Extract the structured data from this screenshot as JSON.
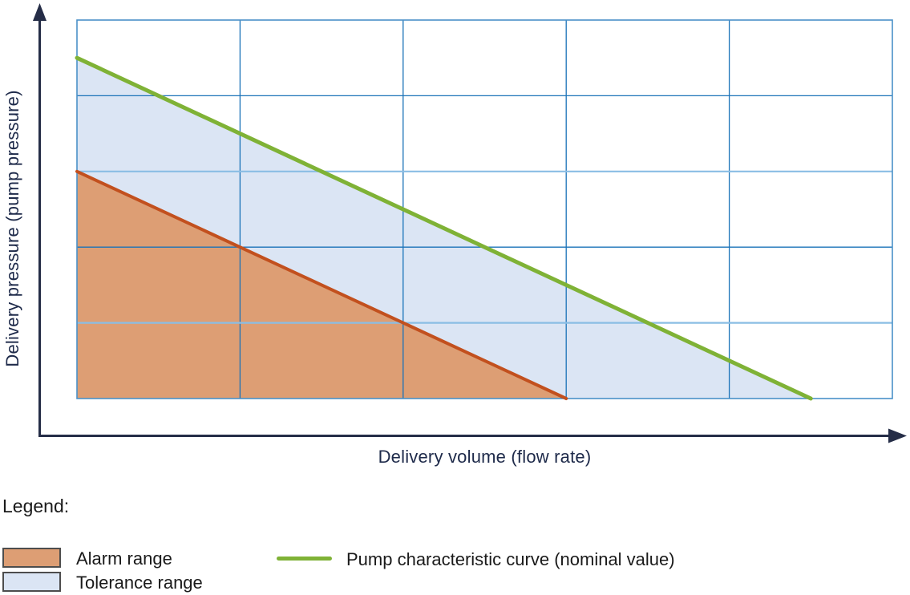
{
  "axes": {
    "x_label": "Delivery volume (flow rate)",
    "y_label": "Delivery pressure (pump pressure)"
  },
  "legend": {
    "title": "Legend:",
    "alarm_label": "Alarm range",
    "tolerance_label": "Tolerance range",
    "curve_label": "Pump characteristic curve (nominal value)"
  },
  "colors": {
    "axis": "#252d47",
    "axis_label_text": "#1e2a4a",
    "legend_text": "#1a1a1a",
    "plot_border": "#4a91c8",
    "grid_dark": "#1a72b8",
    "grid_light": "#8abde4",
    "nominal_curve_green": "#7fb236",
    "alarm_line_orange": "#c2501e",
    "alarm_fill": "#dd9e74",
    "tolerance_fill": "#dbe5f4",
    "swatch_border": "#4d4d4d"
  },
  "chart_data": {
    "type": "area",
    "title": "",
    "xlabel": "Delivery volume (flow rate)",
    "ylabel": "Delivery pressure (pump pressure)",
    "x_range": [
      0,
      5
    ],
    "y_range": [
      0,
      5
    ],
    "axis_tick_labels_visible": false,
    "grid": {
      "cols": 5,
      "rows": 5,
      "vertical_inner_styles": [
        "dark",
        "dark",
        "dark",
        "dark"
      ],
      "horizontal_inner_styles_bottom_up": [
        "light",
        "dark",
        "light",
        "dark"
      ]
    },
    "series": [
      {
        "name": "Pump characteristic curve (nominal value)",
        "slug": "pump-characteristic-curve",
        "color": "#7fb236",
        "width": 5,
        "points": [
          [
            0,
            4.5
          ],
          [
            4.5,
            0
          ]
        ]
      },
      {
        "name": "Alarm boundary line",
        "slug": "alarm-boundary-line",
        "color": "#c2501e",
        "width": 4,
        "points": [
          [
            0,
            3
          ],
          [
            3,
            0
          ]
        ]
      }
    ],
    "areas": [
      {
        "name": "Tolerance range",
        "slug": "tolerance-range-area",
        "color": "#dbe5f4",
        "vertices": [
          [
            0,
            4.5
          ],
          [
            4.5,
            0
          ],
          [
            3,
            0
          ],
          [
            0,
            3
          ]
        ]
      },
      {
        "name": "Alarm range",
        "slug": "alarm-range-area",
        "color": "#dd9e74",
        "vertices": [
          [
            0,
            3
          ],
          [
            3,
            0
          ],
          [
            0,
            0
          ]
        ]
      }
    ],
    "legend_position": "below-chart"
  }
}
